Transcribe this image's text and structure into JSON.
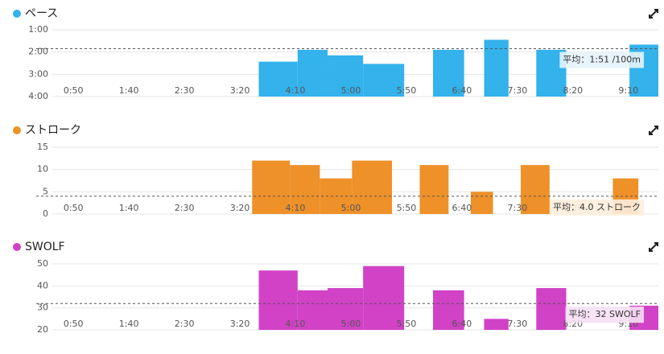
{
  "chart_data": [
    {
      "type": "bar",
      "title": "ペース",
      "color": "#33b2ec",
      "x_start": [
        217,
        252,
        279,
        311,
        374,
        420,
        467,
        551
      ],
      "x_end": [
        252,
        279,
        311,
        348,
        402,
        442,
        494,
        577
      ],
      "values": [
        146,
        114,
        129,
        152,
        114,
        87,
        114,
        100
      ],
      "xlim": [
        31,
        577
      ],
      "xticks": [
        {
          "value": 50,
          "label": "0:50"
        },
        {
          "value": 100,
          "label": "1:40"
        },
        {
          "value": 150,
          "label": "2:30"
        },
        {
          "value": 200,
          "label": "3:20"
        },
        {
          "value": 250,
          "label": "4:10"
        },
        {
          "value": 300,
          "label": "5:00"
        },
        {
          "value": 350,
          "label": "5:50"
        },
        {
          "value": 400,
          "label": "6:40"
        },
        {
          "value": 450,
          "label": "7:30"
        },
        {
          "value": 500,
          "label": "8:20"
        },
        {
          "value": 550,
          "label": "9:10"
        }
      ],
      "ylim": [
        240,
        60
      ],
      "yticks": [
        {
          "value": 60,
          "label": "1:00"
        },
        {
          "value": 120,
          "label": "2:00"
        },
        {
          "value": 180,
          "label": "3:00"
        },
        {
          "value": 240,
          "label": "4:00"
        }
      ],
      "average": 111,
      "average_label": "平均：1:51 /100m",
      "average_color": "#e4f3fb"
    },
    {
      "type": "bar",
      "title": "ストローク",
      "color": "#ee9129",
      "x_start": [
        211,
        245,
        272,
        301,
        362,
        408,
        453,
        536
      ],
      "x_end": [
        245,
        272,
        301,
        337,
        388,
        428,
        479,
        559
      ],
      "values": [
        12,
        11,
        8,
        12,
        11,
        5,
        11,
        8
      ],
      "xlim": [
        31,
        577
      ],
      "xticks": [
        {
          "value": 50,
          "label": "0:50"
        },
        {
          "value": 100,
          "label": "1:40"
        },
        {
          "value": 150,
          "label": "2:30"
        },
        {
          "value": 200,
          "label": "3:20"
        },
        {
          "value": 250,
          "label": "4:10"
        },
        {
          "value": 300,
          "label": "5:00"
        },
        {
          "value": 350,
          "label": "5:50"
        },
        {
          "value": 400,
          "label": "6:40"
        },
        {
          "value": 450,
          "label": "7:30"
        },
        {
          "value": 500,
          "label": "8:20"
        },
        {
          "value": 550,
          "label": "9:10"
        }
      ],
      "ylim": [
        0,
        15
      ],
      "yticks": [
        0,
        5,
        10,
        15
      ],
      "average": 4.0,
      "average_label": "平均：4.0 ストローク",
      "average_color": "#fdeedb"
    },
    {
      "type": "bar",
      "title": "SWOLF",
      "color": "#d142c6",
      "x_start": [
        217,
        252,
        279,
        311,
        374,
        420,
        467,
        551
      ],
      "x_end": [
        252,
        279,
        311,
        348,
        402,
        442,
        494,
        577
      ],
      "values": [
        47,
        38,
        39,
        49,
        38,
        25,
        39,
        31
      ],
      "xlim": [
        31,
        577
      ],
      "xticks": [
        {
          "value": 50,
          "label": "0:50"
        },
        {
          "value": 100,
          "label": "1:40"
        },
        {
          "value": 150,
          "label": "2:30"
        },
        {
          "value": 200,
          "label": "3:20"
        },
        {
          "value": 250,
          "label": "4:10"
        },
        {
          "value": 300,
          "label": "5:00"
        },
        {
          "value": 350,
          "label": "5:50"
        },
        {
          "value": 400,
          "label": "6:40"
        },
        {
          "value": 450,
          "label": "7:30"
        },
        {
          "value": 500,
          "label": "8:20"
        },
        {
          "value": 550,
          "label": "9:10"
        }
      ],
      "ylim": [
        20,
        50
      ],
      "yticks": [
        20,
        30,
        40,
        50
      ],
      "average": 32,
      "average_label": "平均：32 SWOLF",
      "average_color": "#f6e0f4"
    }
  ]
}
